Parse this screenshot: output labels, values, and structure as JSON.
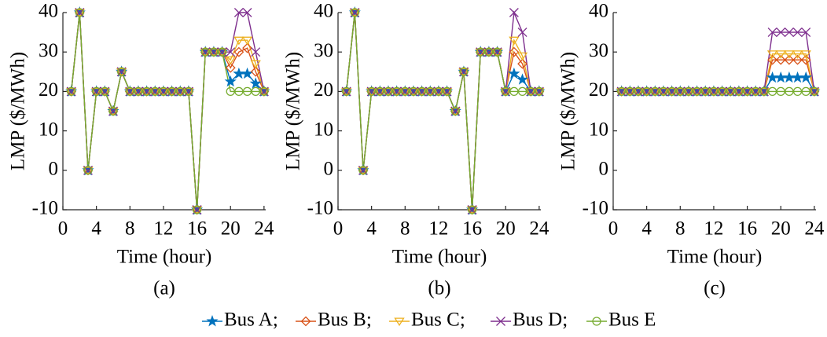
{
  "chart_data": [
    {
      "type": "line",
      "caption": "(a)",
      "x_label": "Time (hour)",
      "y_label": "LMP ($/MWh)",
      "x": [
        1,
        2,
        3,
        4,
        5,
        6,
        7,
        8,
        9,
        10,
        11,
        12,
        13,
        14,
        15,
        16,
        17,
        18,
        19,
        20,
        21,
        22,
        23,
        24
      ],
      "xlim": [
        0,
        24.2
      ],
      "xticks": [
        0,
        4,
        8,
        12,
        16,
        20,
        24
      ],
      "ylim": [
        -10,
        40
      ],
      "yticks": [
        -10,
        0,
        10,
        20,
        30,
        40
      ],
      "series": [
        {
          "values": [
            20,
            40,
            0,
            20,
            20,
            15,
            25,
            20,
            20,
            20,
            20,
            20,
            20,
            20,
            20,
            -10,
            30,
            30,
            30,
            22.5,
            24.5,
            24.5,
            22,
            20
          ]
        },
        {
          "values": [
            20,
            40,
            0,
            20,
            20,
            15,
            25,
            20,
            20,
            20,
            20,
            20,
            20,
            20,
            20,
            -10,
            30,
            30,
            30,
            26,
            30,
            31,
            25,
            20
          ]
        },
        {
          "values": [
            20,
            40,
            0,
            20,
            20,
            15,
            25,
            20,
            20,
            20,
            20,
            20,
            20,
            20,
            20,
            -10,
            30,
            30,
            30,
            28,
            33,
            33,
            27,
            20
          ]
        },
        {
          "values": [
            20,
            40,
            0,
            20,
            20,
            15,
            25,
            20,
            20,
            20,
            20,
            20,
            20,
            20,
            20,
            -10,
            30,
            30,
            30,
            30,
            40,
            40,
            30,
            20
          ]
        },
        {
          "values": [
            20,
            40,
            0,
            20,
            20,
            15,
            25,
            20,
            20,
            20,
            20,
            20,
            20,
            20,
            20,
            -10,
            30,
            30,
            30,
            20,
            20,
            20,
            20,
            20
          ]
        }
      ]
    },
    {
      "type": "line",
      "caption": "(b)",
      "x_label": "Time (hour)",
      "y_label": "LMP ($/MWh)",
      "x": [
        1,
        2,
        3,
        4,
        5,
        6,
        7,
        8,
        9,
        10,
        11,
        12,
        13,
        14,
        15,
        16,
        17,
        18,
        19,
        20,
        21,
        22,
        23,
        24
      ],
      "xlim": [
        0,
        24.2
      ],
      "xticks": [
        0,
        4,
        8,
        12,
        16,
        20,
        24
      ],
      "ylim": [
        -10,
        40
      ],
      "yticks": [
        -10,
        0,
        10,
        20,
        30,
        40
      ],
      "series": [
        {
          "values": [
            20,
            40,
            0,
            20,
            20,
            20,
            20,
            20,
            20,
            20,
            20,
            20,
            20,
            15,
            25,
            -10,
            30,
            30,
            30,
            20,
            24.5,
            23,
            20,
            20
          ]
        },
        {
          "values": [
            20,
            40,
            0,
            20,
            20,
            20,
            20,
            20,
            20,
            20,
            20,
            20,
            20,
            15,
            25,
            -10,
            30,
            30,
            30,
            20,
            30,
            27,
            20,
            20
          ]
        },
        {
          "values": [
            20,
            40,
            0,
            20,
            20,
            20,
            20,
            20,
            20,
            20,
            20,
            20,
            20,
            15,
            25,
            -10,
            30,
            30,
            30,
            20,
            33,
            29,
            20,
            20
          ]
        },
        {
          "values": [
            20,
            40,
            0,
            20,
            20,
            20,
            20,
            20,
            20,
            20,
            20,
            20,
            20,
            15,
            25,
            -10,
            30,
            30,
            30,
            20,
            40,
            35,
            20,
            20
          ]
        },
        {
          "values": [
            20,
            40,
            0,
            20,
            20,
            20,
            20,
            20,
            20,
            20,
            20,
            20,
            20,
            15,
            25,
            -10,
            30,
            30,
            30,
            20,
            20,
            20,
            20,
            20
          ]
        }
      ]
    },
    {
      "type": "line",
      "caption": "(c)",
      "x_label": "Time (hour)",
      "y_label": "LMP ($/MWh)",
      "x": [
        1,
        2,
        3,
        4,
        5,
        6,
        7,
        8,
        9,
        10,
        11,
        12,
        13,
        14,
        15,
        16,
        17,
        18,
        19,
        20,
        21,
        22,
        23,
        24
      ],
      "xlim": [
        0,
        24.2
      ],
      "xticks": [
        0,
        4,
        8,
        12,
        16,
        20,
        24
      ],
      "ylim": [
        -10,
        40
      ],
      "yticks": [
        -10,
        0,
        10,
        20,
        30,
        40
      ],
      "series": [
        {
          "values": [
            20,
            20,
            20,
            20,
            20,
            20,
            20,
            20,
            20,
            20,
            20,
            20,
            20,
            20,
            20,
            20,
            20,
            20,
            23.5,
            23.5,
            23.5,
            23.5,
            23.5,
            20
          ]
        },
        {
          "values": [
            20,
            20,
            20,
            20,
            20,
            20,
            20,
            20,
            20,
            20,
            20,
            20,
            20,
            20,
            20,
            20,
            20,
            20,
            28,
            28,
            28,
            28,
            28,
            20
          ]
        },
        {
          "values": [
            20,
            20,
            20,
            20,
            20,
            20,
            20,
            20,
            20,
            20,
            20,
            20,
            20,
            20,
            20,
            20,
            20,
            20,
            29.5,
            29.5,
            29.5,
            29.5,
            29.5,
            20
          ]
        },
        {
          "values": [
            20,
            20,
            20,
            20,
            20,
            20,
            20,
            20,
            20,
            20,
            20,
            20,
            20,
            20,
            20,
            20,
            20,
            20,
            35,
            35,
            35,
            35,
            35,
            20
          ]
        },
        {
          "values": [
            20,
            20,
            20,
            20,
            20,
            20,
            20,
            20,
            20,
            20,
            20,
            20,
            20,
            20,
            20,
            20,
            20,
            20,
            20,
            20,
            20,
            20,
            20,
            20
          ]
        }
      ]
    }
  ],
  "legend": [
    {
      "name": "Bus A;",
      "color": "#0072bd",
      "marker": "star"
    },
    {
      "name": "Bus B;",
      "color": "#d95319",
      "marker": "diamond"
    },
    {
      "name": "Bus C;",
      "color": "#edb120",
      "marker": "triangle-down"
    },
    {
      "name": "Bus D;",
      "color": "#7e2f8e",
      "marker": "x"
    },
    {
      "name": "Bus E",
      "color": "#77ac30",
      "marker": "circle"
    }
  ]
}
